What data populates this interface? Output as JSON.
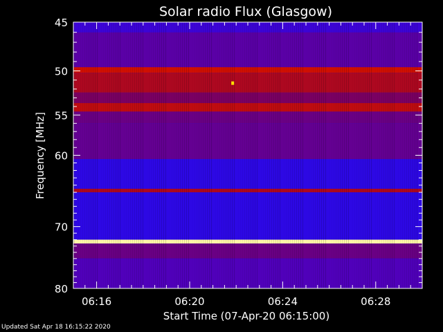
{
  "chart_data": {
    "type": "heatmap",
    "title": "Solar radio Flux (Glasgow)",
    "xlabel": "Start Time (07-Apr-20 06:15:00)",
    "ylabel": "Frequency [MHz]",
    "x_tick_labels": [
      "06:16",
      "06:20",
      "06:24",
      "06:28"
    ],
    "x_tick_minutes": [
      16,
      20,
      24,
      28
    ],
    "x_range_minutes": [
      15,
      30
    ],
    "y_tick_labels": [
      "45",
      "50",
      "55",
      "60",
      "70",
      "80"
    ],
    "y_ticks": [
      45,
      50,
      55,
      60,
      70,
      80
    ],
    "y_range_mhz": [
      45,
      80
    ],
    "y_scale": "log",
    "colormap": [
      "#1010ff",
      "#4a00c8",
      "#8a0040",
      "#d01000",
      "#ffe000",
      "#ffffe0"
    ],
    "intensity_bands": [
      {
        "mhz_from": 45.0,
        "mhz_to": 46.0,
        "level": 0.15
      },
      {
        "mhz_from": 46.0,
        "mhz_to": 49.6,
        "level": 0.25
      },
      {
        "mhz_from": 49.6,
        "mhz_to": 50.2,
        "level": 0.6
      },
      {
        "mhz_from": 50.2,
        "mhz_to": 52.4,
        "level": 0.5
      },
      {
        "mhz_from": 52.4,
        "mhz_to": 53.6,
        "level": 0.35
      },
      {
        "mhz_from": 53.6,
        "mhz_to": 54.6,
        "level": 0.55
      },
      {
        "mhz_from": 54.6,
        "mhz_to": 56.0,
        "level": 0.3
      },
      {
        "mhz_from": 56.0,
        "mhz_to": 60.5,
        "level": 0.28
      },
      {
        "mhz_from": 60.5,
        "mhz_to": 64.5,
        "level": 0.1
      },
      {
        "mhz_from": 64.5,
        "mhz_to": 65.0,
        "level": 0.5
      },
      {
        "mhz_from": 65.0,
        "mhz_to": 72.0,
        "level": 0.1
      },
      {
        "mhz_from": 72.0,
        "mhz_to": 72.6,
        "level": 0.95
      },
      {
        "mhz_from": 72.6,
        "mhz_to": 75.0,
        "level": 0.3
      },
      {
        "mhz_from": 75.0,
        "mhz_to": 80.0,
        "level": 0.22
      }
    ],
    "bright_spots": [
      {
        "minute": 21.85,
        "mhz": 51.3,
        "level": 0.8
      }
    ]
  },
  "footer": {
    "updated": "Updated Sat Apr 18 16:15:22 2020"
  }
}
